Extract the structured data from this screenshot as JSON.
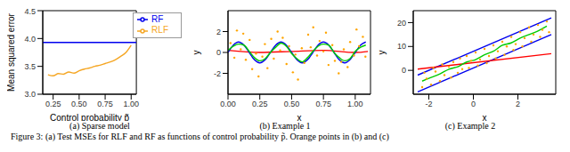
{
  "caption": "Figure 3: (a) Test MSEs for RLF and RF as functions of control probability p̃. Orange points in (b) and (c)",
  "chart_data": [
    {
      "type": "line",
      "title": "(a) Sparse model",
      "x_label": "Control probability p̃",
      "y_label": "Mean squared error",
      "xlim": [
        0.15,
        1.05
      ],
      "xticks": [
        {
          "value": 0.25,
          "label": "0.25"
        },
        {
          "value": 0.5,
          "label": "0.50"
        },
        {
          "value": 0.75,
          "label": "0.75"
        },
        {
          "value": 1,
          "label": "1.00"
        }
      ],
      "ylim": [
        3,
        4.5
      ],
      "yticks": [
        {
          "value": 3,
          "label": "3.0"
        },
        3.5,
        {
          "value": 4,
          "label": "4.0"
        },
        4.5
      ],
      "legend": "upper right",
      "series": [
        {
          "name": "RF",
          "color": "#0000ee",
          "type": "line",
          "x": [
            0.15,
            1.05
          ],
          "values": [
            3.93,
            3.93
          ]
        },
        {
          "name": "RLF",
          "color": "#f5a623",
          "type": "line",
          "x": [
            0.2,
            0.25,
            0.3,
            0.35,
            0.4,
            0.45,
            0.5,
            0.55,
            0.6,
            0.65,
            0.7,
            0.75,
            0.8,
            0.85,
            0.9,
            0.95,
            1.0
          ],
          "values": [
            3.35,
            3.33,
            3.37,
            3.36,
            3.4,
            3.38,
            3.42,
            3.45,
            3.47,
            3.5,
            3.52,
            3.55,
            3.58,
            3.62,
            3.68,
            3.75,
            3.88
          ]
        }
      ]
    },
    {
      "type": "scatter",
      "title": "(b) Example 1",
      "x_label": "x",
      "y_label": "y",
      "xlim": [
        0,
        1.12
      ],
      "xticks": [
        {
          "value": 0,
          "label": "0.00"
        },
        {
          "value": 0.25,
          "label": "0.25"
        },
        {
          "value": 0.5,
          "label": "0.50"
        },
        {
          "value": 0.75,
          "label": "0.75"
        },
        {
          "value": 1,
          "label": "1.00"
        }
      ],
      "ylim": [
        -4,
        4
      ],
      "yticks": [
        -2,
        0,
        2
      ],
      "series": [
        {
          "color": "#ffa500",
          "type": "scatter",
          "x": [
            0.02,
            0.05,
            0.07,
            0.1,
            0.12,
            0.14,
            0.17,
            0.19,
            0.22,
            0.24,
            0.27,
            0.29,
            0.31,
            0.34,
            0.36,
            0.39,
            0.41,
            0.43,
            0.46,
            0.48,
            0.51,
            0.53,
            0.55,
            0.58,
            0.6,
            0.63,
            0.65,
            0.67,
            0.7,
            0.72,
            0.75,
            0.77,
            0.79,
            0.82,
            0.84,
            0.87,
            0.89,
            0.91,
            0.94,
            0.96,
            0.99,
            1.01,
            1.03,
            1.06,
            1.08
          ],
          "values": [
            0.9,
            -0.5,
            2.1,
            0.3,
            1.8,
            -0.7,
            1.2,
            -1.6,
            -0.1,
            -2.3,
            -0.4,
            0.8,
            -1.5,
            1.3,
            -0.6,
            2.0,
            0.2,
            1.4,
            -1.1,
            0.6,
            -1.9,
            -0.2,
            -2.6,
            0.4,
            -1.0,
            1.7,
            0.5,
            2.4,
            -0.3,
            1.1,
            0.1,
            1.9,
            -1.2,
            0.7,
            -0.8,
            -2.0,
            -0.9,
            0.3,
            -1.4,
            1.0,
            -0.3,
            2.2,
            0.6,
            1.5,
            -0.4
          ]
        },
        {
          "color": "#ff0000",
          "type": "line",
          "x": [
            0,
            0.25,
            0.5,
            0.75,
            1.0,
            1.1
          ],
          "values": [
            0.2,
            0.0,
            0.1,
            0.2,
            0.0,
            0.1
          ]
        },
        {
          "color": "#0000ee",
          "type": "line",
          "x": [
            0,
            0.042,
            0.083,
            0.125,
            0.167,
            0.208,
            0.25,
            0.292,
            0.333,
            0.375,
            0.417,
            0.458,
            0.5,
            0.542,
            0.583,
            0.625,
            0.667,
            0.708,
            0.75,
            0.792,
            0.833,
            0.875,
            0.917,
            0.958,
            1.0,
            1.042,
            1.083
          ],
          "values": [
            0,
            0.71,
            1,
            0.71,
            0,
            -0.71,
            -1,
            -0.71,
            0,
            0.71,
            1,
            0.71,
            0,
            -0.71,
            -1,
            -0.71,
            0,
            0.71,
            1,
            0.71,
            0,
            -0.71,
            -1,
            -0.71,
            0,
            0.71,
            1
          ]
        },
        {
          "color": "#00cc00",
          "type": "line",
          "x": [
            0,
            0.042,
            0.083,
            0.125,
            0.167,
            0.208,
            0.25,
            0.292,
            0.333,
            0.375,
            0.417,
            0.458,
            0.5,
            0.542,
            0.583,
            0.625,
            0.667,
            0.708,
            0.75,
            0.792,
            0.833,
            0.875,
            0.917,
            0.958,
            1.0,
            1.042,
            1.083
          ],
          "values": [
            0.2,
            0.6,
            0.8,
            0.7,
            0.1,
            -0.5,
            -0.8,
            -0.6,
            0.0,
            0.5,
            0.9,
            0.6,
            -0.1,
            -0.6,
            -0.9,
            -0.5,
            0.1,
            0.6,
            0.8,
            0.7,
            0.0,
            -0.5,
            -0.8,
            -0.6,
            0.1,
            0.5,
            0.7
          ]
        }
      ]
    },
    {
      "type": "scatter",
      "title": "(c) Example 2",
      "x_label": "x",
      "y_label": "y",
      "xlim": [
        -2.7,
        3.7
      ],
      "xticks": [
        -2,
        0,
        2
      ],
      "ylim": [
        -10,
        25
      ],
      "yticks": [
        0,
        10,
        20
      ],
      "series": [
        {
          "color": "#ffa500",
          "type": "scatter",
          "x": [
            -2.3,
            -2.2,
            -2.1,
            -1.9,
            -1.8,
            -1.7,
            -1.5,
            -1.4,
            -1.3,
            -1.1,
            -1.0,
            -0.9,
            -0.7,
            -0.6,
            -0.5,
            -0.3,
            -0.2,
            -0.1,
            0.1,
            0.2,
            0.3,
            0.5,
            0.6,
            0.7,
            0.9,
            1.0,
            1.1,
            1.3,
            1.4,
            1.5,
            1.7,
            1.8,
            1.9,
            2.1,
            2.2,
            2.3,
            2.5,
            2.6,
            2.7,
            2.9,
            3.0,
            3.1,
            3.3,
            3.4
          ],
          "values": [
            -7,
            -1,
            -3.5,
            -6,
            1,
            -0.5,
            -4.5,
            2.5,
            -2,
            1.5,
            -3,
            3.5,
            -1,
            5,
            0.5,
            6,
            1,
            4,
            7.5,
            2,
            4.5,
            9,
            3,
            6,
            10.5,
            5,
            8,
            12,
            6.5,
            10,
            14,
            8.5,
            11,
            16,
            10,
            13.5,
            18,
            12,
            15,
            19,
            14,
            17,
            20.5,
            16
          ]
        },
        {
          "color": "#0000ee",
          "type": "line",
          "x": [
            -2.5,
            3.5
          ],
          "values": [
            -2,
            22
          ]
        },
        {
          "color": "#0000ee",
          "type": "line",
          "x": [
            -2.5,
            3.5
          ],
          "values": [
            -9,
            15
          ]
        },
        {
          "color": "#ff0000",
          "type": "line",
          "x": [
            -2.5,
            3.5
          ],
          "values": [
            0.5,
            7
          ]
        },
        {
          "color": "#00cc00",
          "type": "line",
          "x": [
            -2.3,
            -1.9,
            -1.5,
            -1.1,
            -0.7,
            -0.3,
            0.1,
            0.5,
            0.9,
            1.3,
            1.7,
            2.1,
            2.5,
            2.9,
            3.3
          ],
          "values": [
            -4.5,
            -3,
            -1.5,
            0.5,
            1.5,
            3.5,
            4.5,
            6.5,
            8,
            10.5,
            11.5,
            13.5,
            15,
            16.5,
            18.5
          ]
        }
      ]
    }
  ]
}
